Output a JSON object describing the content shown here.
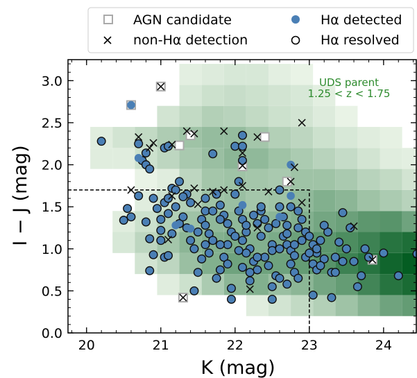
{
  "chart_data": {
    "type": "scatter",
    "xlim": [
      19.75,
      24.45
    ],
    "ylim": [
      0.0,
      3.25
    ],
    "x_ticks": [
      20,
      21,
      22,
      23,
      24
    ],
    "y_ticks": [
      0.0,
      0.5,
      1.0,
      1.5,
      2.0,
      2.5,
      3.0
    ],
    "xtick_labels": [
      "20",
      "21",
      "22",
      "23",
      "24"
    ],
    "ytick_labels": [
      "0.0",
      "0.5",
      "1.0",
      "1.5",
      "2.0",
      "2.5",
      "3.0"
    ],
    "xlabel": "K (mag)",
    "ylabel": "I − J (mag)",
    "grid": false,
    "legend_position": "top",
    "legend": [
      {
        "label": "AGN candidate",
        "marker": "open-square"
      },
      {
        "label": "Hα detected",
        "marker": "filled-circle"
      },
      {
        "label": "non-Hα detection",
        "marker": "x"
      },
      {
        "label": "Hα resolved",
        "marker": "open-circle"
      }
    ],
    "annotation": {
      "line1": "UDS parent",
      "line2": "1.25 < z < 1.75",
      "color": "#2e8b2e"
    },
    "selection_box": {
      "k_max": 23.0,
      "ij_max": 1.7
    },
    "heatmap": {
      "x_start": 20.05,
      "x_step": 0.3,
      "y_start": 0.2,
      "y_step": 0.25,
      "rows": [
        [
          0,
          0,
          0,
          0,
          0,
          0,
          0,
          0.05,
          0.1,
          0.16,
          0.22,
          0.3,
          0.4,
          0.5,
          0.55,
          0.4
        ],
        [
          0,
          0,
          0,
          0.05,
          0.12,
          0.25,
          0.38,
          0.42,
          0.32,
          0.38,
          0.48,
          0.55,
          0.7,
          0.82,
          0.88,
          0.65
        ],
        [
          0,
          0,
          0.1,
          0.18,
          0.32,
          0.42,
          0.5,
          0.5,
          0.5,
          0.55,
          0.6,
          0.72,
          0.82,
          0.92,
          0.98,
          0.8
        ],
        [
          0,
          0.08,
          0.18,
          0.28,
          0.38,
          0.42,
          0.45,
          0.42,
          0.45,
          0.52,
          0.58,
          0.65,
          0.72,
          0.82,
          0.86,
          0.68
        ],
        [
          0,
          0.05,
          0.12,
          0.22,
          0.3,
          0.36,
          0.36,
          0.35,
          0.38,
          0.42,
          0.48,
          0.52,
          0.58,
          0.6,
          0.5,
          0.35
        ],
        [
          0,
          0,
          0.05,
          0.12,
          0.22,
          0.3,
          0.32,
          0.28,
          0.3,
          0.36,
          0.42,
          0.38,
          0.3,
          0.25,
          0.2,
          0.12
        ],
        [
          0,
          0,
          0.02,
          0.05,
          0.18,
          0.28,
          0.3,
          0.28,
          0.26,
          0.3,
          0.3,
          0.26,
          0.2,
          0.16,
          0.1,
          0.05
        ],
        [
          0.05,
          0.05,
          0.12,
          0.18,
          0.26,
          0.32,
          0.38,
          0.36,
          0.3,
          0.25,
          0.2,
          0.15,
          0.1,
          0.05,
          0.04,
          0
        ],
        [
          0.05,
          0.1,
          0.16,
          0.24,
          0.3,
          0.34,
          0.34,
          0.28,
          0.22,
          0.18,
          0.12,
          0.08,
          0.05,
          0.03,
          0,
          0
        ],
        [
          0,
          0,
          0,
          0.1,
          0.16,
          0.22,
          0.2,
          0.16,
          0.12,
          0.1,
          0.06,
          0.02,
          0,
          0,
          0,
          0
        ],
        [
          0,
          0,
          0,
          0,
          0.08,
          0.12,
          0.14,
          0.12,
          0.1,
          0.08,
          0.04,
          0,
          0,
          0,
          0,
          0
        ],
        [
          0,
          0,
          0,
          0,
          0.04,
          0.06,
          0.08,
          0.08,
          0.04,
          0.02,
          0,
          0,
          0,
          0,
          0,
          0
        ]
      ]
    },
    "resolved_points": [
      [
        20.2,
        2.28
      ],
      [
        20.7,
        2.25
      ],
      [
        20.8,
        2.14
      ],
      [
        20.75,
        2.05
      ],
      [
        20.8,
        2.0
      ],
      [
        20.85,
        1.95
      ],
      [
        21.05,
        2.2
      ],
      [
        21.1,
        2.22
      ],
      [
        21.25,
        1.8
      ],
      [
        21.15,
        1.72
      ],
      [
        21.2,
        1.7
      ],
      [
        21.35,
        1.65
      ],
      [
        20.5,
        1.34
      ],
      [
        20.55,
        1.48
      ],
      [
        20.6,
        1.38
      ],
      [
        20.7,
        1.63
      ],
      [
        20.9,
        1.6
      ],
      [
        20.95,
        1.48
      ],
      [
        20.8,
        1.32
      ],
      [
        20.85,
        1.12
      ],
      [
        20.9,
        0.93
      ],
      [
        20.85,
        0.74
      ],
      [
        21.0,
        1.1
      ],
      [
        21.0,
        1.35
      ],
      [
        21.0,
        1.22
      ],
      [
        21.05,
        0.9
      ],
      [
        21.1,
        0.92
      ],
      [
        21.15,
        1.18
      ],
      [
        21.1,
        1.42
      ],
      [
        21.05,
        1.55
      ],
      [
        21.1,
        1.6
      ],
      [
        21.2,
        1.5
      ],
      [
        21.25,
        1.3
      ],
      [
        21.3,
        1.38
      ],
      [
        21.3,
        1.62
      ],
      [
        21.4,
        1.55
      ],
      [
        21.35,
        1.25
      ],
      [
        21.4,
        1.1
      ],
      [
        21.45,
        1.0
      ],
      [
        21.5,
        1.2
      ],
      [
        21.55,
        1.35
      ],
      [
        21.6,
        1.45
      ],
      [
        21.6,
        1.28
      ],
      [
        21.65,
        1.18
      ],
      [
        21.7,
        1.1
      ],
      [
        21.65,
        0.95
      ],
      [
        21.55,
        0.88
      ],
      [
        21.5,
        0.72
      ],
      [
        21.45,
        0.5
      ],
      [
        21.7,
        2.13
      ],
      [
        21.75,
        1.65
      ],
      [
        21.8,
        1.52
      ],
      [
        21.85,
        1.4
      ],
      [
        21.9,
        1.3
      ],
      [
        21.95,
        1.2
      ],
      [
        21.9,
        1.05
      ],
      [
        21.85,
        0.9
      ],
      [
        21.8,
        0.75
      ],
      [
        21.75,
        0.65
      ],
      [
        21.95,
        0.53
      ],
      [
        21.95,
        0.4
      ],
      [
        22.0,
        2.22
      ],
      [
        22.1,
        2.35
      ],
      [
        22.1,
        2.22
      ],
      [
        22.1,
        2.05
      ],
      [
        22.05,
        1.8
      ],
      [
        22.0,
        1.65
      ],
      [
        22.05,
        1.45
      ],
      [
        22.1,
        1.35
      ],
      [
        22.15,
        1.2
      ],
      [
        22.1,
        1.1
      ],
      [
        22.2,
        1.0
      ],
      [
        22.15,
        0.95
      ],
      [
        22.25,
        0.85
      ],
      [
        22.3,
        0.75
      ],
      [
        22.2,
        0.62
      ],
      [
        22.35,
        1.45
      ],
      [
        22.4,
        1.35
      ],
      [
        22.45,
        1.25
      ],
      [
        22.35,
        1.15
      ],
      [
        22.5,
        1.05
      ],
      [
        22.4,
        0.9
      ],
      [
        22.45,
        0.8
      ],
      [
        22.55,
        0.68
      ],
      [
        22.5,
        0.55
      ],
      [
        22.5,
        0.4
      ],
      [
        22.6,
        1.5
      ],
      [
        22.65,
        1.38
      ],
      [
        22.7,
        1.28
      ],
      [
        22.65,
        1.15
      ],
      [
        22.7,
        1.05
      ],
      [
        22.75,
        0.98
      ],
      [
        22.8,
        0.92
      ],
      [
        22.75,
        0.82
      ],
      [
        22.8,
        0.72
      ],
      [
        22.85,
        0.65
      ],
      [
        22.7,
        0.58
      ],
      [
        22.6,
        1.7
      ],
      [
        22.75,
        1.5
      ],
      [
        22.85,
        1.45
      ],
      [
        22.9,
        1.35
      ],
      [
        22.95,
        1.2
      ],
      [
        23.0,
        1.15
      ],
      [
        23.05,
        1.05
      ],
      [
        23.1,
        0.95
      ],
      [
        23.05,
        0.82
      ],
      [
        23.1,
        0.75
      ],
      [
        22.95,
        0.9
      ],
      [
        22.6,
        0.65
      ],
      [
        23.15,
        1.1
      ],
      [
        23.2,
        0.88
      ],
      [
        23.25,
        1.2
      ],
      [
        23.3,
        0.72
      ],
      [
        23.35,
        0.72
      ],
      [
        23.05,
        0.45
      ],
      [
        23.2,
        1.28
      ],
      [
        23.4,
        1.08
      ],
      [
        23.45,
        0.85
      ],
      [
        23.5,
        1.0
      ],
      [
        23.55,
        1.25
      ],
      [
        23.45,
        1.43
      ],
      [
        23.6,
        0.85
      ],
      [
        23.65,
        0.55
      ],
      [
        23.7,
        0.68
      ],
      [
        23.75,
        1.0
      ],
      [
        23.8,
        0.9
      ],
      [
        24.0,
        0.95
      ],
      [
        24.2,
        0.68
      ],
      [
        24.45,
        0.94
      ],
      [
        23.35,
        0.9
      ],
      [
        23.3,
        0.42
      ],
      [
        22.15,
        1.28
      ],
      [
        21.6,
        1.6
      ],
      [
        21.7,
        1.45
      ],
      [
        21.8,
        1.35
      ],
      [
        22.0,
        1.15
      ],
      [
        22.1,
        0.78
      ],
      [
        21.9,
        0.82
      ],
      [
        22.2,
        0.72
      ],
      [
        22.3,
        0.9
      ],
      [
        22.5,
        0.98
      ],
      [
        22.6,
        1.0
      ],
      [
        22.7,
        1.18
      ],
      [
        22.85,
        1.25
      ],
      [
        22.9,
        1.1
      ],
      [
        22.8,
        1.05
      ],
      [
        23.0,
        0.95
      ],
      [
        23.1,
        1.0
      ],
      [
        23.15,
        0.8
      ],
      [
        22.3,
        1.3
      ],
      [
        22.25,
        1.4
      ],
      [
        22.35,
        1.5
      ],
      [
        22.55,
        1.3
      ],
      [
        21.8,
        1.05
      ],
      [
        22.05,
        0.98
      ],
      [
        21.6,
        1.05
      ]
    ],
    "detected_points": [
      [
        20.6,
        2.71
      ],
      [
        20.7,
        2.08
      ],
      [
        22.75,
        2.0
      ],
      [
        22.1,
        1.52
      ],
      [
        22.75,
        1.63
      ],
      [
        21.2,
        1.28
      ],
      [
        21.4,
        1.24
      ],
      [
        22.6,
        1.38
      ]
    ],
    "agn_candidates": [
      [
        21.0,
        2.93
      ],
      [
        20.6,
        2.71
      ],
      [
        21.25,
        2.23
      ],
      [
        21.4,
        2.35
      ],
      [
        22.4,
        2.33
      ],
      [
        22.1,
        1.99
      ],
      [
        22.1,
        1.98
      ],
      [
        21.3,
        0.42
      ],
      [
        23.85,
        0.87
      ],
      [
        22.7,
        1.8
      ]
    ],
    "non_ha_points": [
      [
        21.0,
        2.93
      ],
      [
        20.7,
        2.33
      ],
      [
        20.85,
        2.2
      ],
      [
        20.9,
        2.26
      ],
      [
        21.15,
        2.24
      ],
      [
        21.35,
        2.4
      ],
      [
        21.45,
        2.37
      ],
      [
        21.85,
        2.4
      ],
      [
        22.1,
        2.14
      ],
      [
        22.1,
        1.99
      ],
      [
        22.3,
        2.33
      ],
      [
        22.9,
        2.5
      ],
      [
        22.8,
        1.97
      ],
      [
        22.75,
        1.8
      ],
      [
        20.6,
        1.7
      ],
      [
        21.15,
        1.63
      ],
      [
        21.45,
        1.72
      ],
      [
        21.7,
        1.68
      ],
      [
        21.85,
        1.7
      ],
      [
        21.5,
        1.53
      ],
      [
        22.1,
        1.75
      ],
      [
        22.45,
        1.68
      ],
      [
        22.9,
        1.55
      ],
      [
        23.6,
        1.27
      ],
      [
        21.1,
        1.11
      ],
      [
        22.2,
        0.52
      ],
      [
        22.3,
        1.25
      ],
      [
        23.85,
        0.87
      ],
      [
        21.3,
        0.42
      ]
    ]
  }
}
